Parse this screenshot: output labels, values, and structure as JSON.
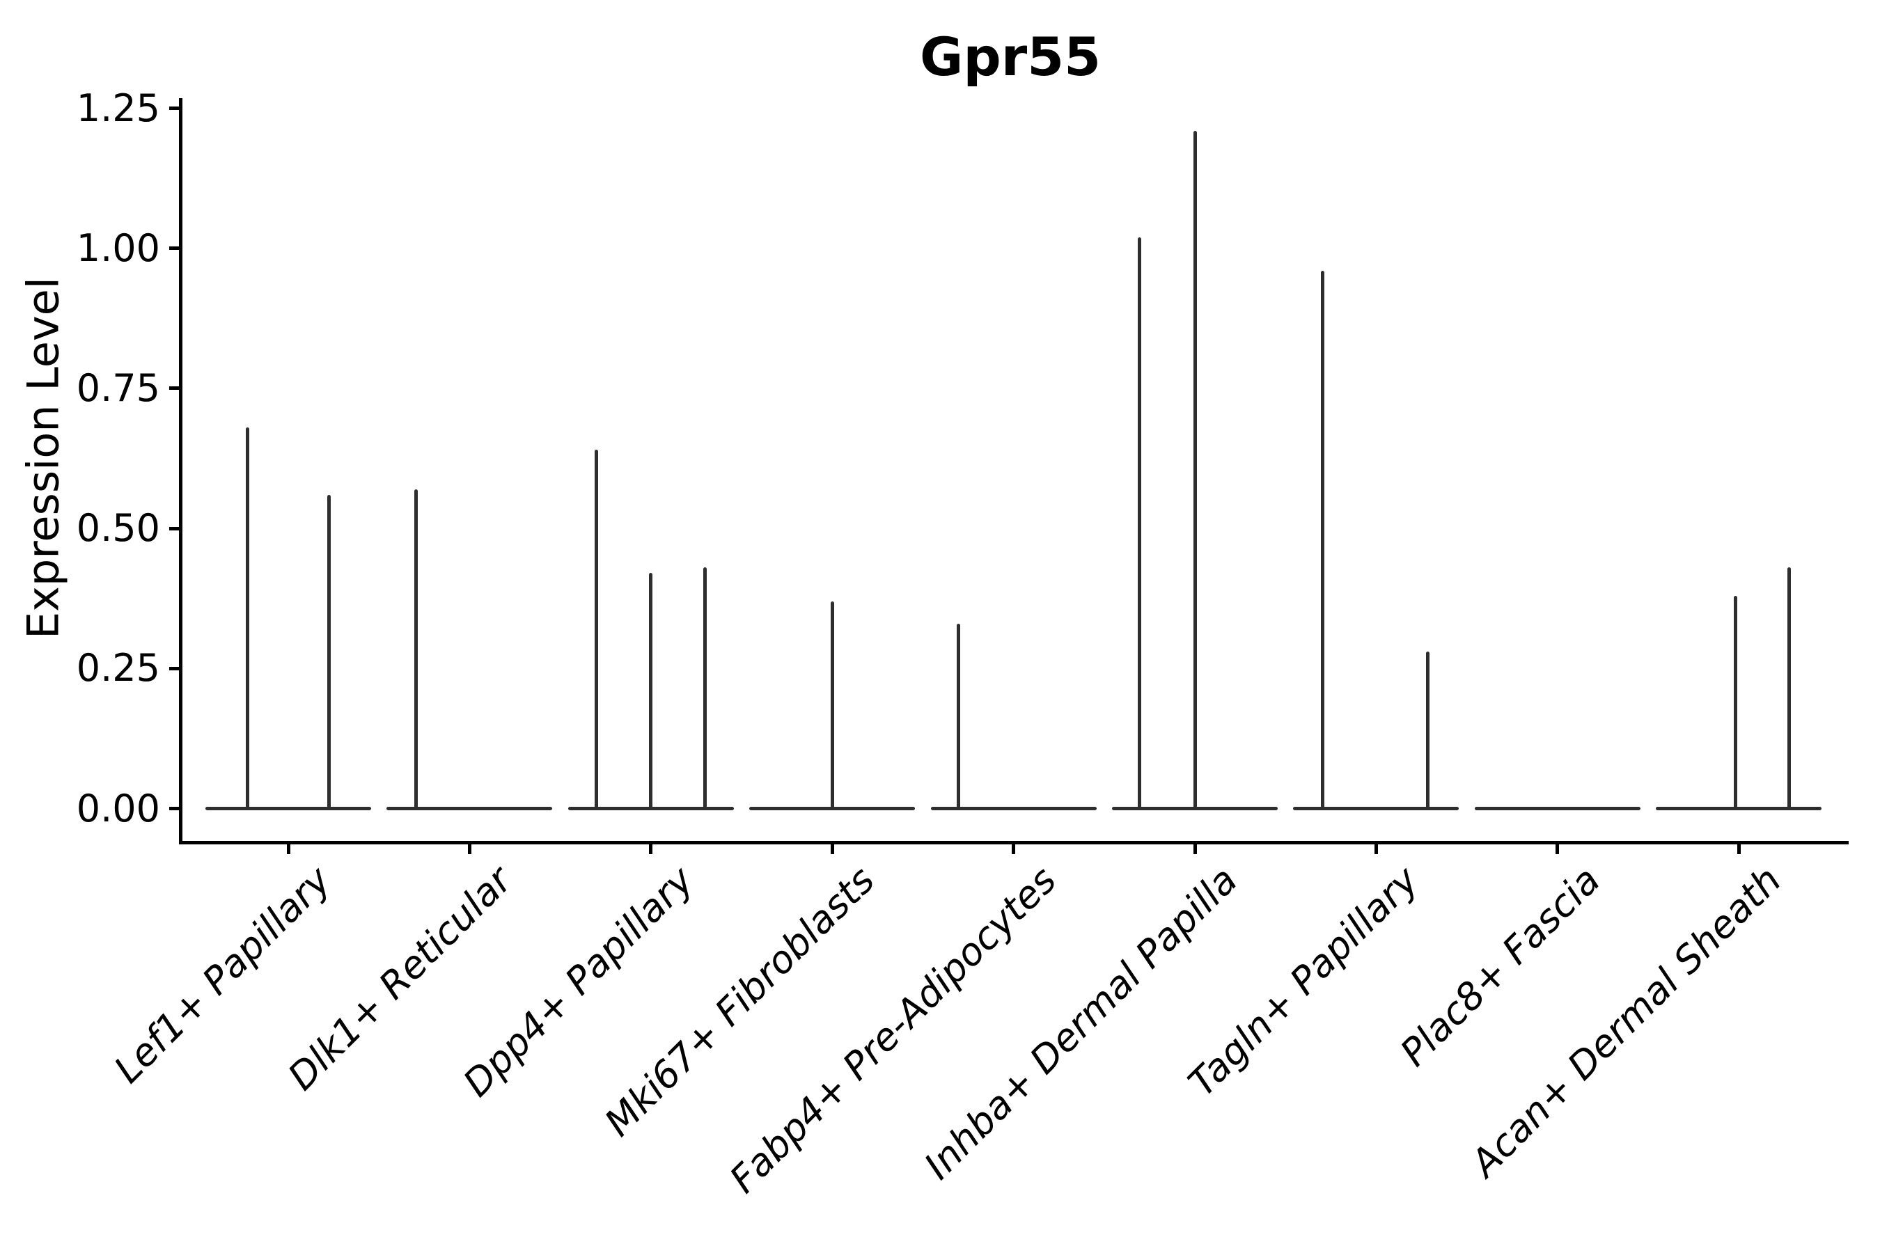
{
  "title": "Gpr55",
  "ylabel": "Expression Level",
  "chart_data": {
    "type": "violin",
    "title": "Gpr55",
    "xlabel": "",
    "ylabel": "Expression Level",
    "ylim": [
      0,
      1.25
    ],
    "ytick_values": [
      0,
      0.25,
      0.5,
      0.75,
      1.0,
      1.25
    ],
    "ytick_labels": [
      "0.00",
      "0.25",
      "0.50",
      "0.75",
      "1.00",
      "1.25"
    ],
    "grid": false,
    "legend": "none",
    "xtick_rotation_deg": 45,
    "xtick_style": "italic",
    "stroke_color": "#2e2e2e",
    "categories": [
      "Lef1+ Papillary",
      "Dlk1+ Reticular",
      "Dpp4+ Papillary",
      "Mki67+ Fibroblasts",
      "Fabp4+ Pre-Adipocytes",
      "Inhba+ Dermal Papilla",
      "Tagln+ Papillary",
      "Plac8+ Fascia",
      "Acan+ Dermal Sheath"
    ],
    "violins": [
      {
        "category": "Lef1+ Papillary",
        "base_value": 0,
        "needles": [
          {
            "offset": -0.5,
            "value": 0.68
          },
          {
            "offset": 0.5,
            "value": 0.56
          }
        ]
      },
      {
        "category": "Dlk1+ Reticular",
        "base_value": 0,
        "needles": [
          {
            "offset": -0.66,
            "value": 0.57
          }
        ]
      },
      {
        "category": "Dpp4+ Papillary",
        "base_value": 0,
        "needles": [
          {
            "offset": -0.67,
            "value": 0.64
          },
          {
            "offset": 0.0,
            "value": 0.42
          },
          {
            "offset": 0.66,
            "value": 0.43
          }
        ]
      },
      {
        "category": "Mki67+ Fibroblasts",
        "base_value": 0,
        "needles": [
          {
            "offset": 0.0,
            "value": 0.37
          }
        ]
      },
      {
        "category": "Fabp4+ Pre-Adipocytes",
        "base_value": 0,
        "needles": [
          {
            "offset": -0.68,
            "value": 0.33
          }
        ]
      },
      {
        "category": "Inhba+ Dermal Papilla",
        "base_value": 0,
        "needles": [
          {
            "offset": -0.68,
            "value": 1.02
          },
          {
            "offset": 0.0,
            "value": 1.21
          }
        ]
      },
      {
        "category": "Tagln+ Papillary",
        "base_value": 0,
        "needles": [
          {
            "offset": -0.66,
            "value": 0.96
          },
          {
            "offset": 0.63,
            "value": 0.28
          }
        ]
      },
      {
        "category": "Plac8+ Fascia",
        "base_value": 0,
        "needles": []
      },
      {
        "category": "Acan+ Dermal Sheath",
        "base_value": 0,
        "needles": [
          {
            "offset": -0.04,
            "value": 0.38
          },
          {
            "offset": 0.62,
            "value": 0.43
          }
        ]
      }
    ]
  }
}
